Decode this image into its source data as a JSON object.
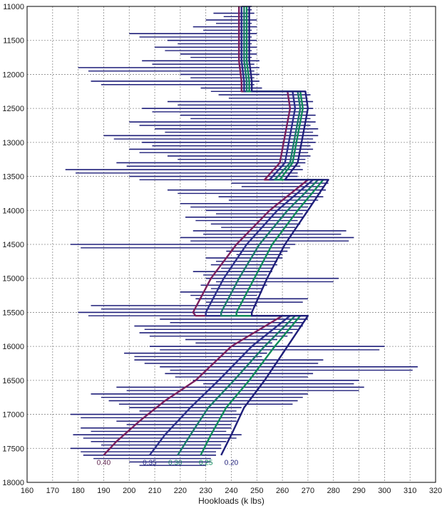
{
  "chart_data": {
    "type": "line",
    "title": "",
    "xlabel": "Hookloads (k lbs)",
    "ylabel": "",
    "xlim": [
      160,
      320
    ],
    "ylim": [
      11000,
      18000
    ],
    "y_inverted": true,
    "grid": true,
    "x_ticks": [
      160,
      170,
      180,
      190,
      200,
      210,
      220,
      230,
      240,
      250,
      260,
      270,
      280,
      290,
      300,
      310,
      320
    ],
    "y_ticks": [
      11000,
      11500,
      12000,
      12500,
      13000,
      13500,
      14000,
      14500,
      15000,
      15500,
      16000,
      16500,
      17000,
      17500,
      18000
    ],
    "colors": {
      "measured": "#1f1f7a",
      "ff_040": "#7a1f5c",
      "ff_035": "#2b2f8a",
      "ff_030": "#1a7a6a",
      "ff_025": "#0f8a5a",
      "ff_020": "#1f1f7a",
      "grid": "#8a8a8a",
      "frame": "#000000"
    },
    "series": [
      {
        "name": "0.40",
        "label_color": "#5a1f4a",
        "color": "#7a1f5c",
        "points": [
          [
            243,
            11000
          ],
          [
            243,
            11800
          ],
          [
            244,
            12100
          ],
          [
            244,
            12250
          ],
          [
            262,
            12250
          ],
          [
            263,
            12500
          ],
          [
            262,
            12700
          ],
          [
            261,
            12900
          ],
          [
            260,
            13100
          ],
          [
            259,
            13300
          ],
          [
            253,
            13550
          ],
          [
            270,
            13550
          ],
          [
            255,
            14000
          ],
          [
            242,
            14500
          ],
          [
            232,
            15000
          ],
          [
            225,
            15500
          ],
          [
            226,
            15550
          ],
          [
            260,
            15550
          ],
          [
            240,
            16000
          ],
          [
            226,
            16500
          ],
          [
            214,
            16800
          ],
          [
            204,
            17100
          ],
          [
            195,
            17400
          ],
          [
            190,
            17600
          ]
        ]
      },
      {
        "name": "0.35",
        "label_color": "#2b2f8a",
        "color": "#2b2f8a",
        "points": [
          [
            244,
            11000
          ],
          [
            244,
            11800
          ],
          [
            245,
            12100
          ],
          [
            245,
            12250
          ],
          [
            264,
            12250
          ],
          [
            265,
            12500
          ],
          [
            264,
            12700
          ],
          [
            263,
            12900
          ],
          [
            262,
            13100
          ],
          [
            261,
            13300
          ],
          [
            255,
            13550
          ],
          [
            272,
            13550
          ],
          [
            258,
            14000
          ],
          [
            246,
            14500
          ],
          [
            237,
            15000
          ],
          [
            230,
            15500
          ],
          [
            230,
            15550
          ],
          [
            263,
            15550
          ],
          [
            248,
            16000
          ],
          [
            235,
            16500
          ],
          [
            224,
            16900
          ],
          [
            214,
            17300
          ],
          [
            208,
            17600
          ]
        ]
      },
      {
        "name": "0.30",
        "label_color": "#1a7a6a",
        "color": "#1a7a6a",
        "points": [
          [
            245,
            11000
          ],
          [
            245,
            11800
          ],
          [
            246,
            12100
          ],
          [
            246,
            12250
          ],
          [
            266,
            12250
          ],
          [
            267,
            12500
          ],
          [
            266,
            12700
          ],
          [
            265,
            12900
          ],
          [
            264,
            13100
          ],
          [
            263,
            13300
          ],
          [
            257,
            13550
          ],
          [
            274,
            13550
          ],
          [
            262,
            14000
          ],
          [
            251,
            14500
          ],
          [
            243,
            15000
          ],
          [
            236,
            15500
          ],
          [
            236,
            15550
          ],
          [
            265,
            15550
          ],
          [
            253,
            16000
          ],
          [
            241,
            16500
          ],
          [
            231,
            16900
          ],
          [
            224,
            17300
          ],
          [
            219,
            17600
          ]
        ]
      },
      {
        "name": "0.25",
        "label_color": "#0f8a5a",
        "color": "#0f8a5a",
        "points": [
          [
            246,
            11000
          ],
          [
            246,
            11800
          ],
          [
            247,
            12100
          ],
          [
            247,
            12250
          ],
          [
            267,
            12250
          ],
          [
            268,
            12500
          ],
          [
            267,
            12700
          ],
          [
            266,
            12900
          ],
          [
            265,
            13100
          ],
          [
            264,
            13300
          ],
          [
            259,
            13550
          ],
          [
            276,
            13550
          ],
          [
            266,
            14000
          ],
          [
            256,
            14500
          ],
          [
            249,
            15000
          ],
          [
            242,
            15500
          ],
          [
            242,
            15550
          ],
          [
            267,
            15550
          ],
          [
            257,
            16000
          ],
          [
            247,
            16500
          ],
          [
            238,
            16900
          ],
          [
            232,
            17300
          ],
          [
            228,
            17600
          ]
        ]
      },
      {
        "name": "0.20",
        "label_color": "#1f1f7a",
        "color": "#1f1f7a",
        "points": [
          [
            247,
            11000
          ],
          [
            247,
            11800
          ],
          [
            248,
            12100
          ],
          [
            248,
            12250
          ],
          [
            269,
            12250
          ],
          [
            270,
            12500
          ],
          [
            269,
            12700
          ],
          [
            268,
            12900
          ],
          [
            267,
            13100
          ],
          [
            266,
            13300
          ],
          [
            261,
            13550
          ],
          [
            278,
            13550
          ],
          [
            270,
            14000
          ],
          [
            261,
            14500
          ],
          [
            254,
            15000
          ],
          [
            248,
            15500
          ],
          [
            248,
            15550
          ],
          [
            270,
            15550
          ],
          [
            262,
            16000
          ],
          [
            253,
            16500
          ],
          [
            245,
            16900
          ],
          [
            240,
            17300
          ],
          [
            236,
            17600
          ]
        ]
      }
    ],
    "curve_labels": [
      {
        "text": "0.40",
        "x": 190,
        "y": 17700
      },
      {
        "text": "0.35",
        "x": 208,
        "y": 17700
      },
      {
        "text": "0.30",
        "x": 218,
        "y": 17700
      },
      {
        "text": "0.25",
        "x": 230,
        "y": 17700
      },
      {
        "text": "0.20",
        "x": 240,
        "y": 17700
      }
    ],
    "measured_hookloads": {
      "name": "",
      "color": "#1f1f7a",
      "segments": [
        [
          11000,
          244,
          248
        ],
        [
          11100,
          233,
          249
        ],
        [
          11200,
          230,
          250
        ],
        [
          11300,
          225,
          250
        ],
        [
          11400,
          200,
          250
        ],
        [
          11500,
          215,
          250
        ],
        [
          11600,
          210,
          250
        ],
        [
          11700,
          220,
          250
        ],
        [
          11800,
          205,
          251
        ],
        [
          11900,
          180,
          251
        ],
        [
          12000,
          220,
          251
        ],
        [
          12100,
          185,
          251
        ],
        [
          12200,
          228,
          252
        ],
        [
          12300,
          235,
          271
        ],
        [
          12400,
          215,
          272
        ],
        [
          12500,
          205,
          272
        ],
        [
          12600,
          220,
          273
        ],
        [
          12700,
          200,
          273
        ],
        [
          12800,
          210,
          274
        ],
        [
          12900,
          190,
          274
        ],
        [
          13000,
          205,
          273
        ],
        [
          13100,
          200,
          272
        ],
        [
          13200,
          215,
          271
        ],
        [
          13300,
          195,
          269
        ],
        [
          13400,
          175,
          268
        ],
        [
          13500,
          200,
          266
        ],
        [
          13600,
          240,
          278
        ],
        [
          13700,
          215,
          277
        ],
        [
          13800,
          235,
          276
        ],
        [
          13900,
          220,
          272
        ],
        [
          14000,
          230,
          270
        ],
        [
          14100,
          222,
          268
        ],
        [
          14200,
          232,
          267
        ],
        [
          14300,
          225,
          285
        ],
        [
          14400,
          220,
          288
        ],
        [
          14500,
          177,
          265
        ],
        [
          14600,
          238,
          262
        ],
        [
          14700,
          230,
          260
        ],
        [
          14800,
          232,
          258
        ],
        [
          14900,
          225,
          256
        ],
        [
          15000,
          230,
          282
        ],
        [
          15100,
          228,
          254
        ],
        [
          15200,
          220,
          252
        ],
        [
          15300,
          226,
          270
        ],
        [
          15400,
          185,
          250
        ],
        [
          15500,
          180,
          248
        ],
        [
          15600,
          212,
          270
        ],
        [
          15700,
          202,
          268
        ],
        [
          15800,
          204,
          264
        ],
        [
          15900,
          222,
          258
        ],
        [
          16000,
          208,
          300
        ],
        [
          16100,
          198,
          254
        ],
        [
          16200,
          202,
          276
        ],
        [
          16300,
          212,
          313
        ],
        [
          16400,
          214,
          272
        ],
        [
          16500,
          225,
          290
        ],
        [
          16600,
          195,
          292
        ],
        [
          16700,
          185,
          270
        ],
        [
          16800,
          192,
          266
        ],
        [
          16900,
          200,
          244
        ],
        [
          17000,
          177,
          244
        ],
        [
          17100,
          195,
          242
        ],
        [
          17200,
          181,
          240
        ],
        [
          17300,
          178,
          244
        ],
        [
          17400,
          185,
          238
        ],
        [
          17500,
          177,
          236
        ],
        [
          17600,
          182,
          234
        ],
        [
          17700,
          200,
          232
        ]
      ]
    }
  }
}
